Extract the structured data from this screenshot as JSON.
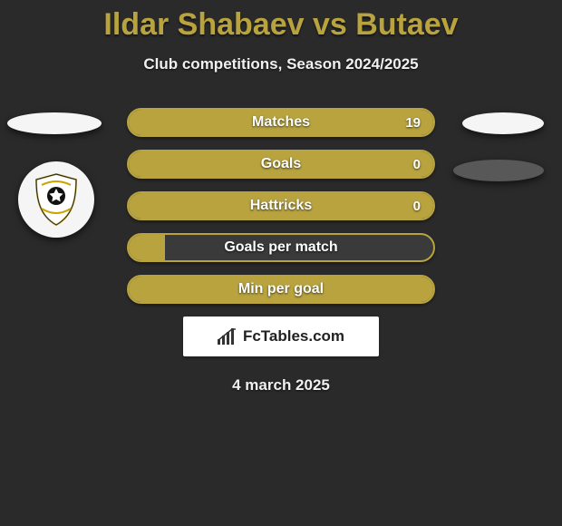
{
  "title": "Ildar Shabaev vs Butaev",
  "subtitle": "Club competitions, Season 2024/2025",
  "date": "4 march 2025",
  "brand": "FcTables.com",
  "colors": {
    "accent": "#b8a33f",
    "background": "#2a2a2a",
    "bar_bg": "#3a3a3a",
    "ellipse_light": "#f5f5f5",
    "ellipse_dark": "#585858",
    "text": "#ffffff"
  },
  "stats": [
    {
      "label": "Matches",
      "value": "19",
      "fill_pct": 100,
      "show_value": true
    },
    {
      "label": "Goals",
      "value": "0",
      "fill_pct": 100,
      "show_value": true
    },
    {
      "label": "Hattricks",
      "value": "0",
      "fill_pct": 100,
      "show_value": true
    },
    {
      "label": "Goals per match",
      "value": "",
      "fill_pct": 12,
      "show_value": false
    },
    {
      "label": "Min per goal",
      "value": "",
      "fill_pct": 100,
      "show_value": false
    }
  ]
}
